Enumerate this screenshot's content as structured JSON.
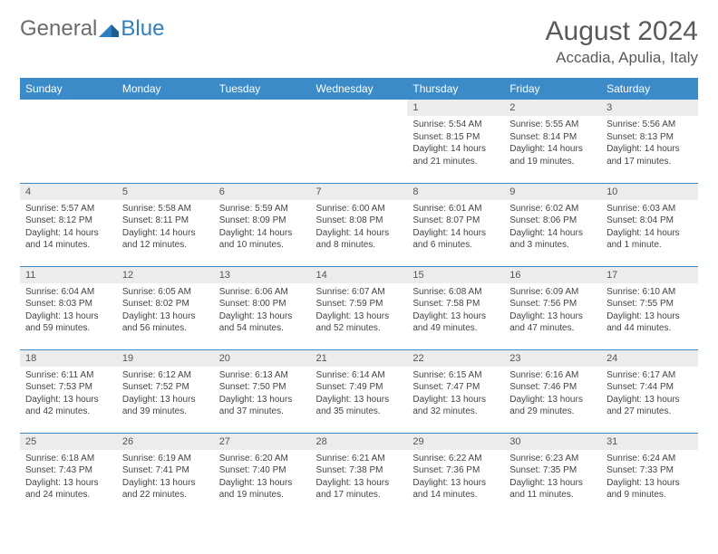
{
  "brand": {
    "general": "General",
    "blue": "Blue"
  },
  "title": "August 2024",
  "location": "Accadia, Apulia, Italy",
  "colors": {
    "header_bg": "#3b8bc9",
    "header_text": "#ffffff",
    "daynum_bg": "#ececec",
    "border": "#3b8bc9",
    "title_color": "#5a5a5a",
    "body_text": "#444444"
  },
  "typography": {
    "title_fontsize": 30,
    "location_fontsize": 17,
    "dayheader_fontsize": 12,
    "daynum_fontsize": 11,
    "cell_fontsize": 10
  },
  "day_headers": [
    "Sunday",
    "Monday",
    "Tuesday",
    "Wednesday",
    "Thursday",
    "Friday",
    "Saturday"
  ],
  "weeks": [
    [
      null,
      null,
      null,
      null,
      {
        "n": "1",
        "sr": "Sunrise: 5:54 AM",
        "ss": "Sunset: 8:15 PM",
        "dl": "Daylight: 14 hours and 21 minutes."
      },
      {
        "n": "2",
        "sr": "Sunrise: 5:55 AM",
        "ss": "Sunset: 8:14 PM",
        "dl": "Daylight: 14 hours and 19 minutes."
      },
      {
        "n": "3",
        "sr": "Sunrise: 5:56 AM",
        "ss": "Sunset: 8:13 PM",
        "dl": "Daylight: 14 hours and 17 minutes."
      }
    ],
    [
      {
        "n": "4",
        "sr": "Sunrise: 5:57 AM",
        "ss": "Sunset: 8:12 PM",
        "dl": "Daylight: 14 hours and 14 minutes."
      },
      {
        "n": "5",
        "sr": "Sunrise: 5:58 AM",
        "ss": "Sunset: 8:11 PM",
        "dl": "Daylight: 14 hours and 12 minutes."
      },
      {
        "n": "6",
        "sr": "Sunrise: 5:59 AM",
        "ss": "Sunset: 8:09 PM",
        "dl": "Daylight: 14 hours and 10 minutes."
      },
      {
        "n": "7",
        "sr": "Sunrise: 6:00 AM",
        "ss": "Sunset: 8:08 PM",
        "dl": "Daylight: 14 hours and 8 minutes."
      },
      {
        "n": "8",
        "sr": "Sunrise: 6:01 AM",
        "ss": "Sunset: 8:07 PM",
        "dl": "Daylight: 14 hours and 6 minutes."
      },
      {
        "n": "9",
        "sr": "Sunrise: 6:02 AM",
        "ss": "Sunset: 8:06 PM",
        "dl": "Daylight: 14 hours and 3 minutes."
      },
      {
        "n": "10",
        "sr": "Sunrise: 6:03 AM",
        "ss": "Sunset: 8:04 PM",
        "dl": "Daylight: 14 hours and 1 minute."
      }
    ],
    [
      {
        "n": "11",
        "sr": "Sunrise: 6:04 AM",
        "ss": "Sunset: 8:03 PM",
        "dl": "Daylight: 13 hours and 59 minutes."
      },
      {
        "n": "12",
        "sr": "Sunrise: 6:05 AM",
        "ss": "Sunset: 8:02 PM",
        "dl": "Daylight: 13 hours and 56 minutes."
      },
      {
        "n": "13",
        "sr": "Sunrise: 6:06 AM",
        "ss": "Sunset: 8:00 PM",
        "dl": "Daylight: 13 hours and 54 minutes."
      },
      {
        "n": "14",
        "sr": "Sunrise: 6:07 AM",
        "ss": "Sunset: 7:59 PM",
        "dl": "Daylight: 13 hours and 52 minutes."
      },
      {
        "n": "15",
        "sr": "Sunrise: 6:08 AM",
        "ss": "Sunset: 7:58 PM",
        "dl": "Daylight: 13 hours and 49 minutes."
      },
      {
        "n": "16",
        "sr": "Sunrise: 6:09 AM",
        "ss": "Sunset: 7:56 PM",
        "dl": "Daylight: 13 hours and 47 minutes."
      },
      {
        "n": "17",
        "sr": "Sunrise: 6:10 AM",
        "ss": "Sunset: 7:55 PM",
        "dl": "Daylight: 13 hours and 44 minutes."
      }
    ],
    [
      {
        "n": "18",
        "sr": "Sunrise: 6:11 AM",
        "ss": "Sunset: 7:53 PM",
        "dl": "Daylight: 13 hours and 42 minutes."
      },
      {
        "n": "19",
        "sr": "Sunrise: 6:12 AM",
        "ss": "Sunset: 7:52 PM",
        "dl": "Daylight: 13 hours and 39 minutes."
      },
      {
        "n": "20",
        "sr": "Sunrise: 6:13 AM",
        "ss": "Sunset: 7:50 PM",
        "dl": "Daylight: 13 hours and 37 minutes."
      },
      {
        "n": "21",
        "sr": "Sunrise: 6:14 AM",
        "ss": "Sunset: 7:49 PM",
        "dl": "Daylight: 13 hours and 35 minutes."
      },
      {
        "n": "22",
        "sr": "Sunrise: 6:15 AM",
        "ss": "Sunset: 7:47 PM",
        "dl": "Daylight: 13 hours and 32 minutes."
      },
      {
        "n": "23",
        "sr": "Sunrise: 6:16 AM",
        "ss": "Sunset: 7:46 PM",
        "dl": "Daylight: 13 hours and 29 minutes."
      },
      {
        "n": "24",
        "sr": "Sunrise: 6:17 AM",
        "ss": "Sunset: 7:44 PM",
        "dl": "Daylight: 13 hours and 27 minutes."
      }
    ],
    [
      {
        "n": "25",
        "sr": "Sunrise: 6:18 AM",
        "ss": "Sunset: 7:43 PM",
        "dl": "Daylight: 13 hours and 24 minutes."
      },
      {
        "n": "26",
        "sr": "Sunrise: 6:19 AM",
        "ss": "Sunset: 7:41 PM",
        "dl": "Daylight: 13 hours and 22 minutes."
      },
      {
        "n": "27",
        "sr": "Sunrise: 6:20 AM",
        "ss": "Sunset: 7:40 PM",
        "dl": "Daylight: 13 hours and 19 minutes."
      },
      {
        "n": "28",
        "sr": "Sunrise: 6:21 AM",
        "ss": "Sunset: 7:38 PM",
        "dl": "Daylight: 13 hours and 17 minutes."
      },
      {
        "n": "29",
        "sr": "Sunrise: 6:22 AM",
        "ss": "Sunset: 7:36 PM",
        "dl": "Daylight: 13 hours and 14 minutes."
      },
      {
        "n": "30",
        "sr": "Sunrise: 6:23 AM",
        "ss": "Sunset: 7:35 PM",
        "dl": "Daylight: 13 hours and 11 minutes."
      },
      {
        "n": "31",
        "sr": "Sunrise: 6:24 AM",
        "ss": "Sunset: 7:33 PM",
        "dl": "Daylight: 13 hours and 9 minutes."
      }
    ]
  ]
}
